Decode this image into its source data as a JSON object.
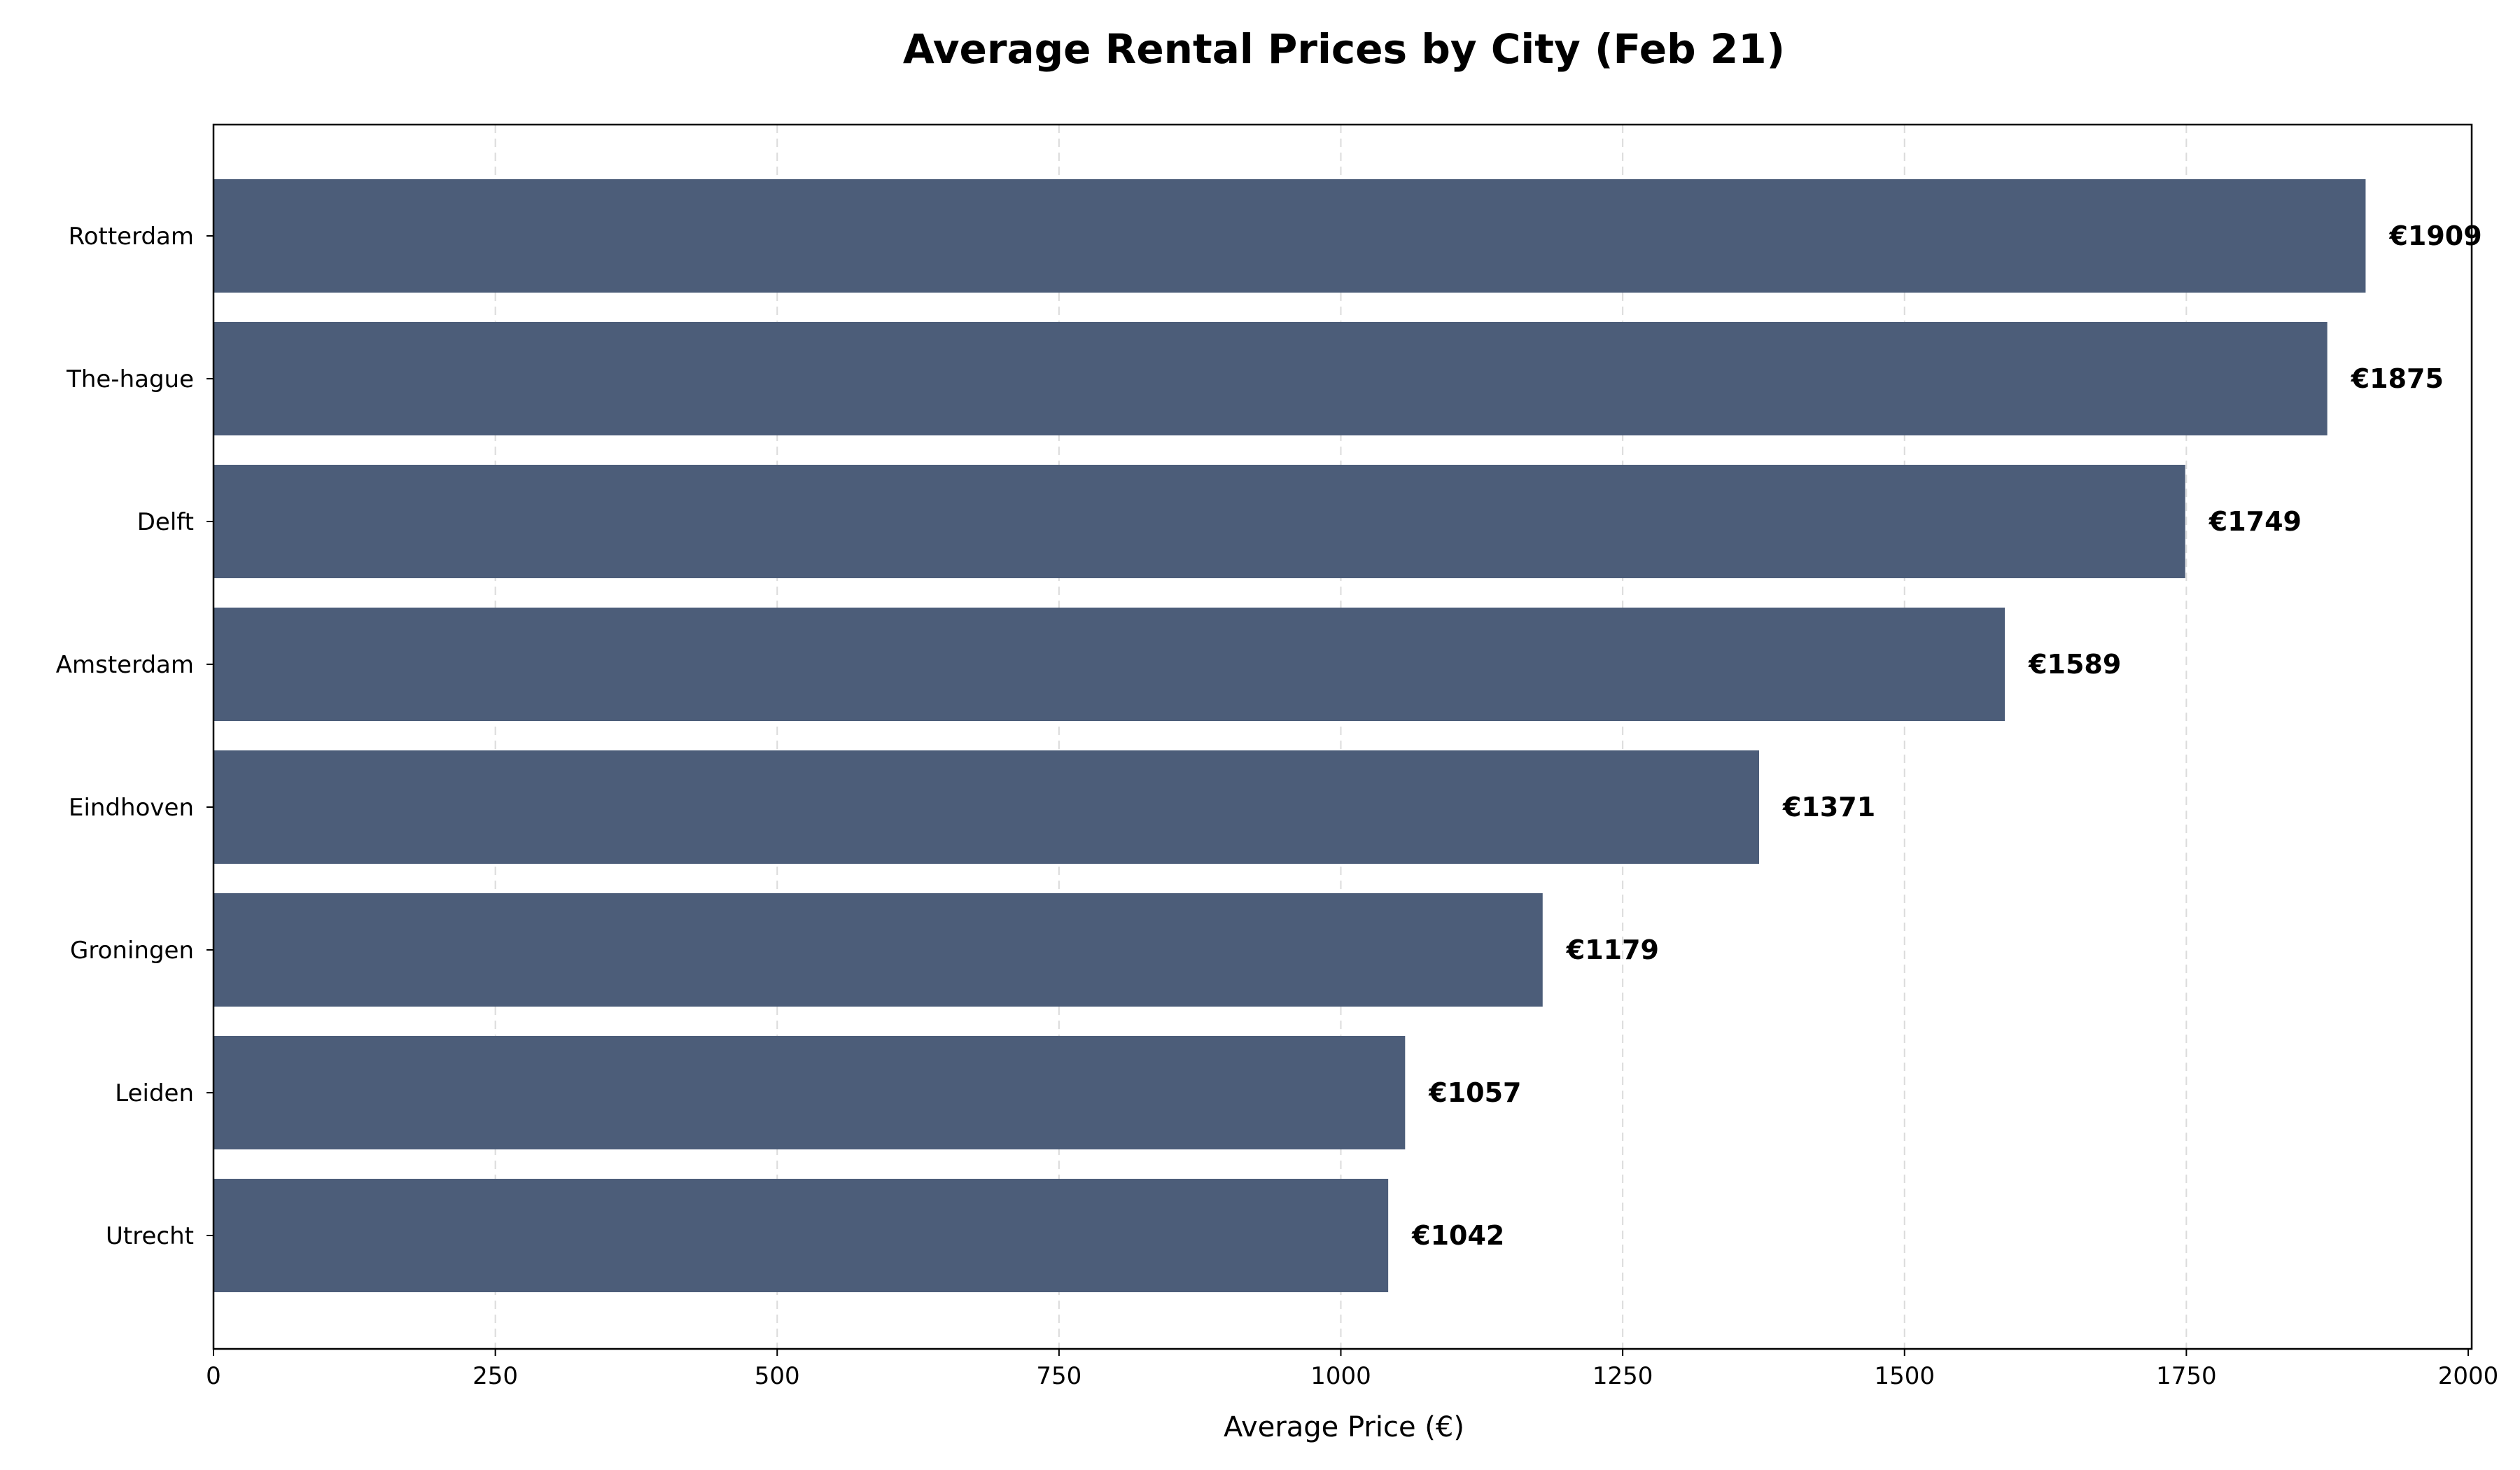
{
  "chart_data": {
    "type": "bar",
    "orientation": "horizontal",
    "title": "Average Rental Prices by City (Feb 21)",
    "xlabel": "Average Price (€)",
    "ylabel": "",
    "categories": [
      "Rotterdam",
      "The-hague",
      "Delft",
      "Amsterdam",
      "Eindhoven",
      "Groningen",
      "Leiden",
      "Utrecht"
    ],
    "values": [
      1909,
      1875,
      1749,
      1589,
      1371,
      1179,
      1057,
      1042
    ],
    "value_labels": [
      "€1909",
      "€1875",
      "€1749",
      "€1589",
      "€1371",
      "€1179",
      "€1057",
      "€1042"
    ],
    "xlim": [
      0,
      2000
    ],
    "xticks": [
      0,
      250,
      500,
      750,
      1000,
      1250,
      1500,
      1750,
      2000
    ],
    "xtick_labels": [
      "0",
      "250",
      "500",
      "750",
      "1000",
      "1250",
      "1500",
      "1750",
      "2000"
    ],
    "grid": "x-dashed",
    "bar_color": "#4c5d79"
  }
}
